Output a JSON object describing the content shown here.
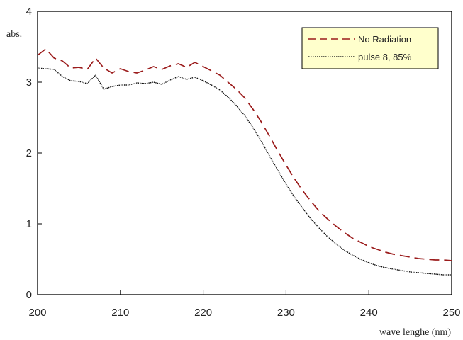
{
  "chart_data": {
    "type": "line",
    "xlabel": "wave lenghe (nm)",
    "ylabel": "abs.",
    "xlim": [
      200,
      250
    ],
    "ylim": [
      0,
      4
    ],
    "x_ticks": [
      "200",
      "210",
      "220",
      "230",
      "240",
      "250"
    ],
    "y_ticks": [
      "0",
      "1",
      "2",
      "3",
      "4"
    ],
    "grid": false,
    "legend_position": "top-right",
    "series": [
      {
        "name": "No Radiation",
        "color": "#9b1c1c",
        "style": "dashed",
        "x": [
          200,
          201,
          202,
          203,
          204,
          205,
          206,
          207,
          208,
          209,
          210,
          211,
          212,
          213,
          214,
          215,
          216,
          217,
          218,
          219,
          220,
          221,
          222,
          223,
          224,
          225,
          226,
          227,
          228,
          229,
          230,
          231,
          232,
          233,
          234,
          235,
          236,
          237,
          238,
          239,
          240,
          241,
          242,
          243,
          244,
          245,
          246,
          247,
          248,
          249,
          250
        ],
        "y": [
          3.38,
          3.47,
          3.34,
          3.3,
          3.2,
          3.21,
          3.18,
          3.34,
          3.2,
          3.13,
          3.19,
          3.15,
          3.13,
          3.17,
          3.22,
          3.18,
          3.23,
          3.26,
          3.21,
          3.28,
          3.22,
          3.16,
          3.1,
          3.0,
          2.9,
          2.78,
          2.62,
          2.44,
          2.24,
          2.03,
          1.83,
          1.64,
          1.47,
          1.32,
          1.18,
          1.07,
          0.97,
          0.88,
          0.8,
          0.74,
          0.68,
          0.64,
          0.6,
          0.57,
          0.55,
          0.53,
          0.51,
          0.5,
          0.49,
          0.49,
          0.48
        ]
      },
      {
        "name": "pulse 8, 85%",
        "color": "#111111",
        "style": "dotted",
        "x": [
          200,
          201,
          202,
          203,
          204,
          205,
          206,
          207,
          208,
          209,
          210,
          211,
          212,
          213,
          214,
          215,
          216,
          217,
          218,
          219,
          220,
          221,
          222,
          223,
          224,
          225,
          226,
          227,
          228,
          229,
          230,
          231,
          232,
          233,
          234,
          235,
          236,
          237,
          238,
          239,
          240,
          241,
          242,
          243,
          244,
          245,
          246,
          247,
          248,
          249,
          250
        ],
        "y": [
          3.2,
          3.19,
          3.18,
          3.08,
          3.02,
          3.01,
          2.98,
          3.1,
          2.9,
          2.94,
          2.96,
          2.96,
          2.99,
          2.98,
          3.0,
          2.97,
          3.03,
          3.08,
          3.04,
          3.07,
          3.02,
          2.96,
          2.89,
          2.79,
          2.67,
          2.53,
          2.36,
          2.17,
          1.96,
          1.76,
          1.56,
          1.38,
          1.22,
          1.07,
          0.94,
          0.82,
          0.72,
          0.63,
          0.56,
          0.5,
          0.45,
          0.41,
          0.38,
          0.36,
          0.34,
          0.32,
          0.31,
          0.3,
          0.29,
          0.28,
          0.28
        ]
      }
    ]
  }
}
